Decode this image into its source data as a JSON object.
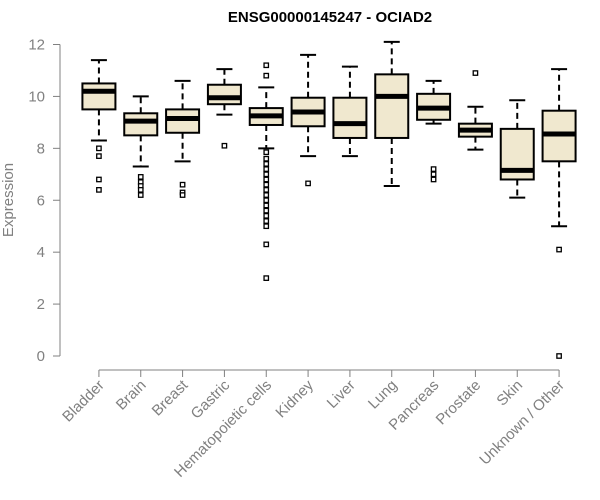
{
  "chart_data": {
    "type": "boxplot",
    "title": "ENSG00000145247 - OCIAD2",
    "ylabel": "Expression",
    "xlabel": "",
    "ylim": [
      0,
      12
    ],
    "yticks": [
      "0",
      "2",
      "4",
      "6",
      "8",
      "10",
      "12"
    ],
    "box_fill": "#f0e8cf",
    "axis_color": "#808080",
    "categories": [
      "Bladder",
      "Brain",
      "Breast",
      "Gastric",
      "Hematopoietic cells",
      "Kidney",
      "Liver",
      "Lung",
      "Pancreas",
      "Prostate",
      "Skin",
      "Unknown / Other"
    ],
    "boxes": [
      {
        "min": 8.3,
        "q1": 9.5,
        "median": 10.2,
        "q3": 10.5,
        "max": 11.4,
        "outliers": [
          8.0,
          7.7,
          6.8,
          6.4
        ]
      },
      {
        "min": 7.3,
        "q1": 8.5,
        "median": 9.05,
        "q3": 9.35,
        "max": 10.0,
        "outliers": [
          6.9,
          6.7,
          6.55,
          6.4,
          6.2
        ]
      },
      {
        "min": 7.5,
        "q1": 8.6,
        "median": 9.15,
        "q3": 9.5,
        "max": 10.6,
        "outliers": [
          6.6,
          6.3,
          6.2
        ]
      },
      {
        "min": 9.3,
        "q1": 9.7,
        "median": 9.95,
        "q3": 10.45,
        "max": 11.05,
        "outliers": [
          8.1
        ]
      },
      {
        "min": 8.0,
        "q1": 8.9,
        "median": 9.25,
        "q3": 9.55,
        "max": 10.35,
        "outliers": [
          11.2,
          10.8,
          7.85,
          7.6,
          7.4,
          7.2,
          7.0,
          6.8,
          6.6,
          6.4,
          6.2,
          6.0,
          5.8,
          5.6,
          5.4,
          5.2,
          5.0,
          4.3,
          3.0
        ]
      },
      {
        "min": 7.7,
        "q1": 8.85,
        "median": 9.4,
        "q3": 9.95,
        "max": 11.6,
        "outliers": [
          6.65
        ]
      },
      {
        "min": 7.7,
        "q1": 8.4,
        "median": 8.95,
        "q3": 9.95,
        "max": 11.15,
        "outliers": []
      },
      {
        "min": 6.55,
        "q1": 8.4,
        "median": 10.0,
        "q3": 10.85,
        "max": 12.1,
        "outliers": []
      },
      {
        "min": 8.95,
        "q1": 9.1,
        "median": 9.55,
        "q3": 10.1,
        "max": 10.6,
        "outliers": [
          7.2,
          7.0,
          6.8
        ]
      },
      {
        "min": 7.95,
        "q1": 8.45,
        "median": 8.7,
        "q3": 8.95,
        "max": 9.6,
        "outliers": [
          10.9
        ]
      },
      {
        "min": 6.1,
        "q1": 6.8,
        "median": 7.15,
        "q3": 8.75,
        "max": 9.85,
        "outliers": []
      },
      {
        "min": 5.0,
        "q1": 7.5,
        "median": 8.55,
        "q3": 9.45,
        "max": 11.05,
        "outliers": [
          4.1,
          0.0
        ]
      }
    ]
  }
}
